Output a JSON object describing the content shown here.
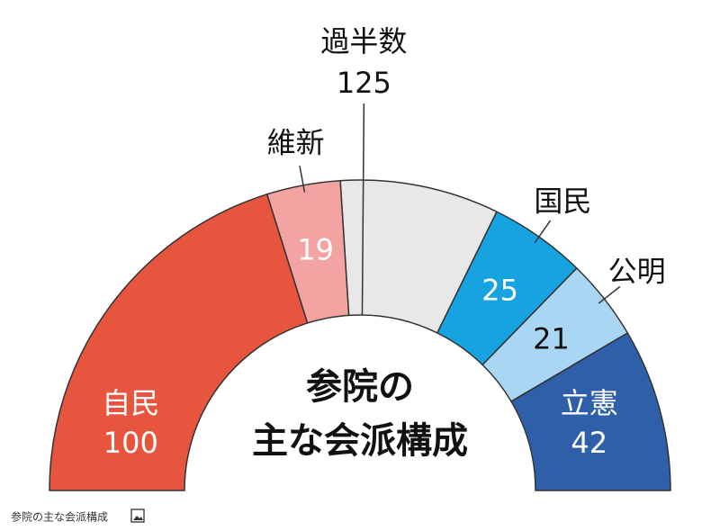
{
  "chart_data": {
    "type": "semicircle",
    "title": [
      "参院の",
      "主な会派構成"
    ],
    "categories": [
      "自民",
      "維新",
      null,
      "国民",
      "公明",
      "立憲"
    ],
    "values": [
      100,
      19,
      41,
      25,
      21,
      42
    ],
    "colors": [
      "#e8553f",
      "#f4a3a3",
      "#e8e8e8",
      "#17a2e0",
      "#a9d6f2",
      "#2f5fa9"
    ],
    "majority": {
      "value": 125,
      "label": "過半数"
    },
    "caption": "参院の主な会派構成"
  }
}
